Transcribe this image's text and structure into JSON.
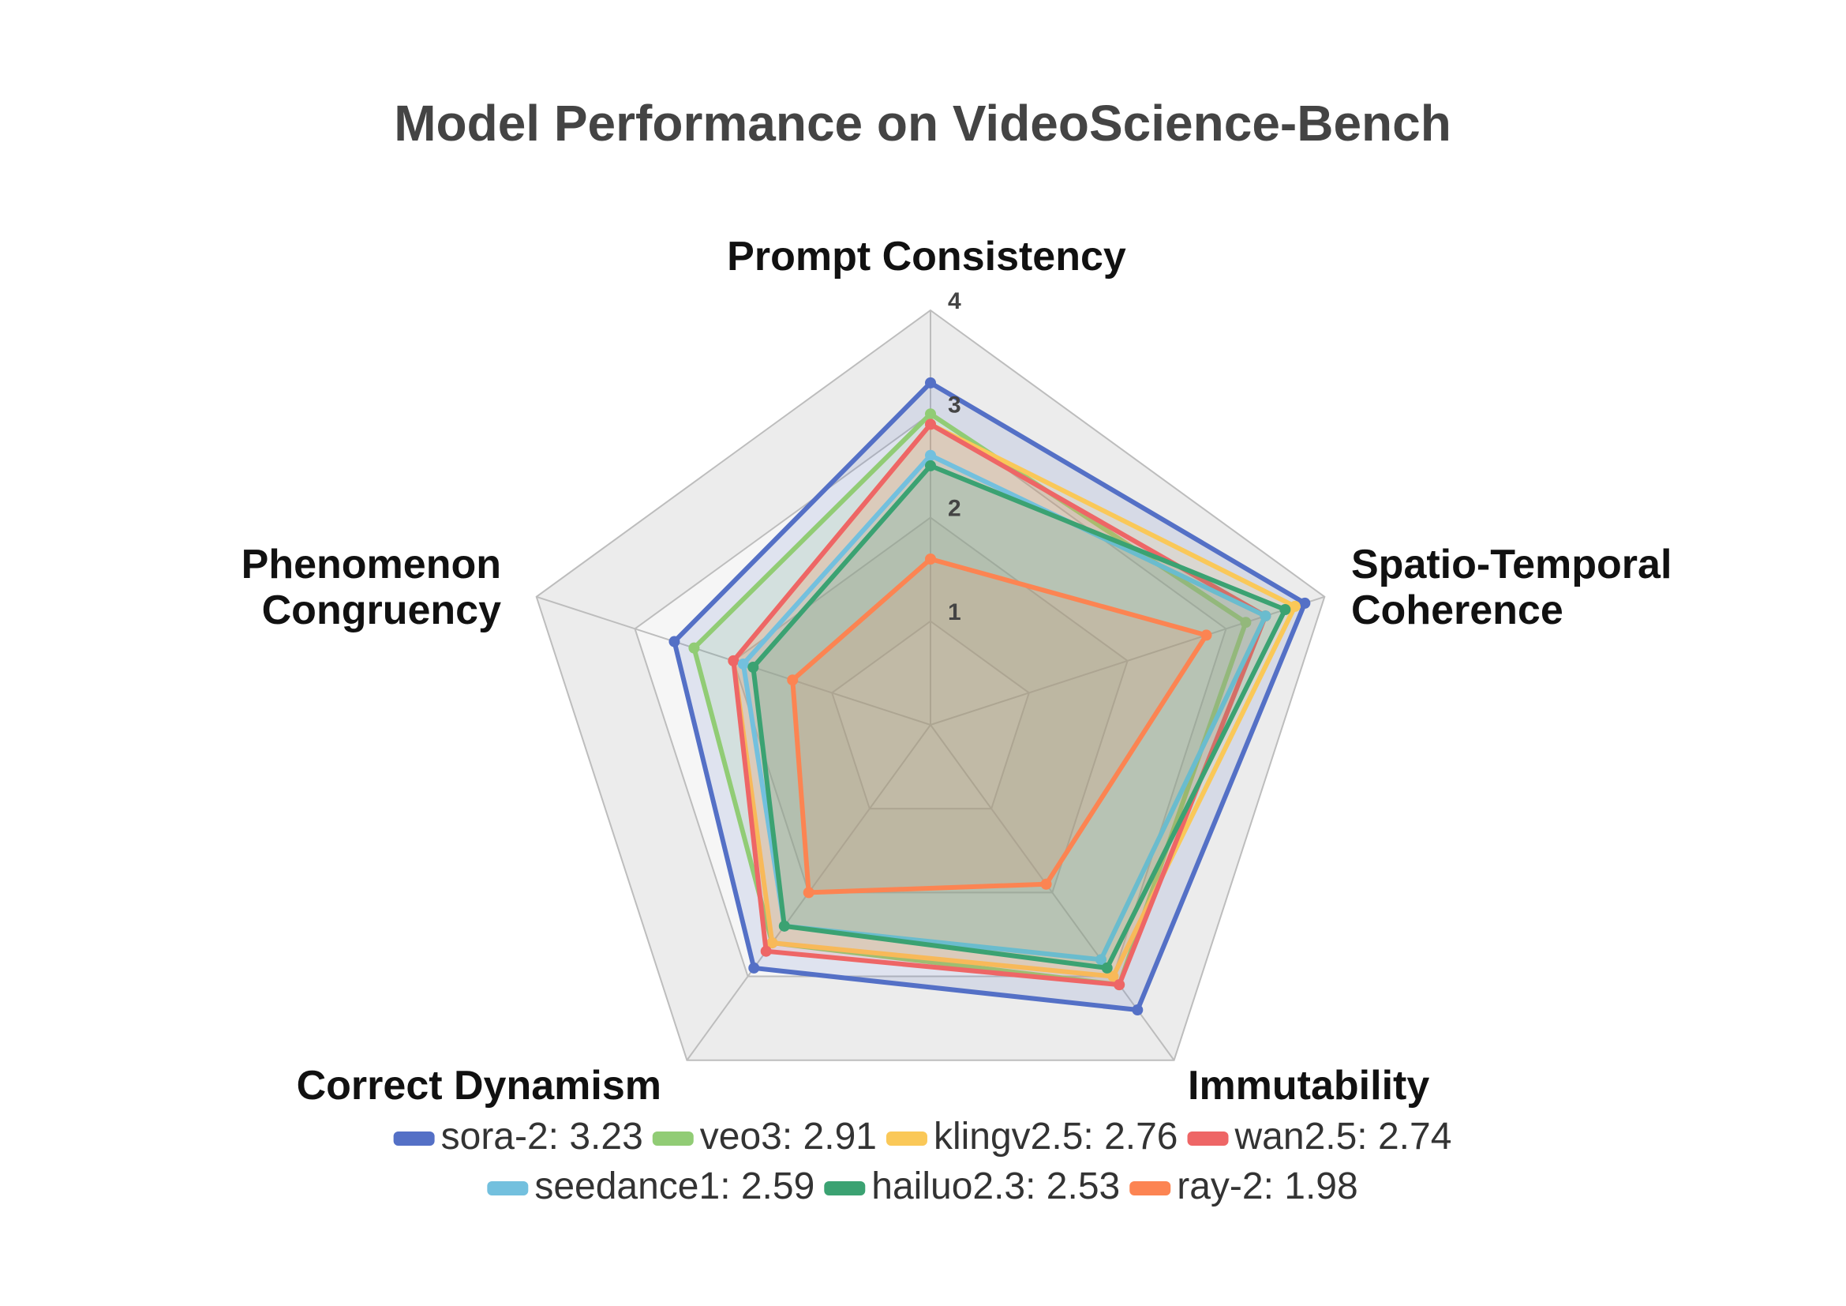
{
  "chart_data": {
    "type": "radar",
    "title": "Model Performance on VideoScience-Bench",
    "axes": [
      {
        "label_lines": [
          "Prompt Consistency"
        ]
      },
      {
        "label_lines": [
          "Spatio-Temporal",
          "Coherence"
        ]
      },
      {
        "label_lines": [
          "Immutability"
        ]
      },
      {
        "label_lines": [
          "Correct Dynamism"
        ]
      },
      {
        "label_lines": [
          "Phenomenon",
          "Congruency"
        ]
      }
    ],
    "rlim": [
      0,
      4
    ],
    "ticks": [
      "1",
      "2",
      "3",
      "4"
    ],
    "tick_values": [
      1,
      2,
      3,
      4
    ],
    "legend_position": "bottom",
    "series": [
      {
        "name": "sora-2",
        "legend": "sora-2: 3.23",
        "color": "#5470c6",
        "values": [
          3.3,
          3.8,
          3.4,
          2.9,
          2.6
        ]
      },
      {
        "name": "veo3",
        "legend": "veo3: 2.91",
        "color": "#91cc75",
        "values": [
          3.0,
          3.2,
          3.1,
          2.6,
          2.4
        ]
      },
      {
        "name": "klingv2.5",
        "legend": "klingv2.5: 2.76",
        "color": "#fac858",
        "values": [
          2.9,
          3.7,
          3.0,
          2.6,
          2.0
        ]
      },
      {
        "name": "wan2.5",
        "legend": "wan2.5: 2.74",
        "color": "#ee6666",
        "values": [
          2.9,
          3.4,
          3.1,
          2.7,
          2.0
        ]
      },
      {
        "name": "seedance1",
        "legend": "seedance1: 2.59",
        "color": "#73c0de",
        "values": [
          2.6,
          3.4,
          2.8,
          2.4,
          1.9
        ]
      },
      {
        "name": "hailuo2.3",
        "legend": "hailuo2.3: 2.53",
        "color": "#3ba272",
        "values": [
          2.5,
          3.6,
          2.9,
          2.4,
          1.8
        ]
      },
      {
        "name": "ray-2",
        "legend": "ray-2: 1.98",
        "color": "#fc8452",
        "values": [
          1.6,
          2.8,
          1.9,
          2.0,
          1.4
        ]
      }
    ]
  }
}
